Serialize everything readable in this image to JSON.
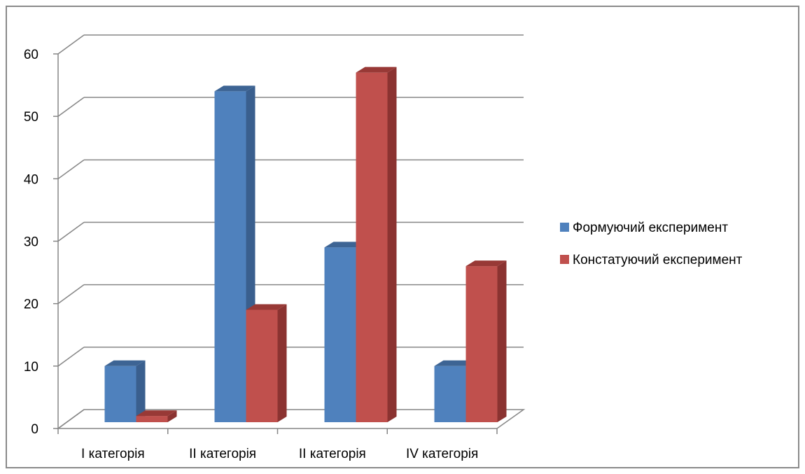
{
  "chart_data": {
    "type": "bar",
    "style": "3d-clustered-column",
    "categories": [
      "I категорія",
      "II категорія",
      "II категорія",
      "IV категорія"
    ],
    "series": [
      {
        "name": "Формуючий експеримент",
        "values": [
          9,
          53,
          28,
          9
        ],
        "color": "#4f81bd",
        "side_color": "#3a5f8e",
        "top_color": "#3d6494"
      },
      {
        "name": "Констатуючий експеримент",
        "values": [
          1,
          18,
          56,
          25
        ],
        "color": "#c0504d",
        "side_color": "#8b3331",
        "top_color": "#983936"
      }
    ],
    "ylim": [
      0,
      60
    ],
    "yticks": [
      0,
      10,
      20,
      30,
      40,
      50,
      60
    ],
    "grid": true,
    "legend_position": "right"
  }
}
